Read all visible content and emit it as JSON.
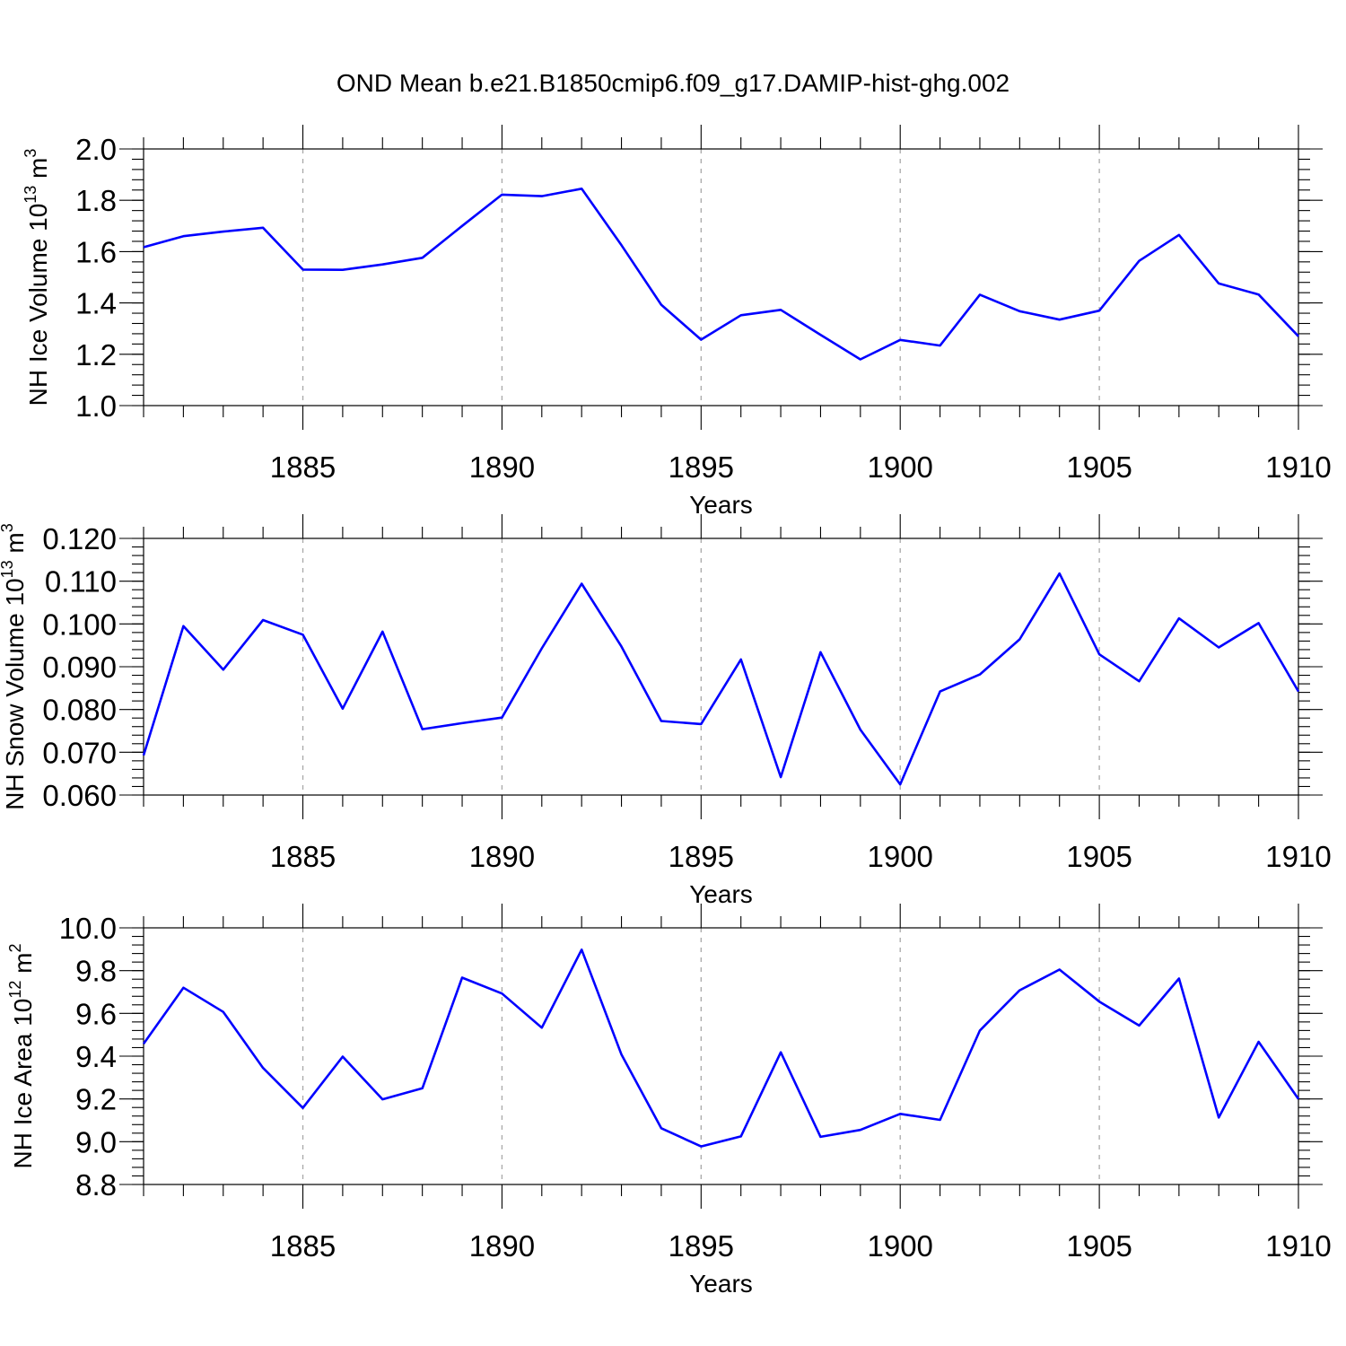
{
  "title": "OND Mean b.e21.B1850cmip6.f09_g17.DAMIP-hist-ghg.002",
  "colors": {
    "line": "#0000ff",
    "axis": "#000000",
    "grid": "#a8a8a8"
  },
  "chart_data": [
    {
      "type": "line",
      "ylabel": {
        "text": "NH Ice Volume 10",
        "sup1": "13",
        "mid": " m",
        "sup2": "3"
      },
      "xlabel": "Years",
      "xlim": [
        1881,
        1910
      ],
      "ylim": [
        1.0,
        2.0
      ],
      "yticks": [
        {
          "v": 1.0,
          "label": "1.0"
        },
        {
          "v": 1.2,
          "label": "1.2"
        },
        {
          "v": 1.4,
          "label": "1.4"
        },
        {
          "v": 1.6,
          "label": "1.6"
        },
        {
          "v": 1.8,
          "label": "1.8"
        },
        {
          "v": 2.0,
          "label": "2.0"
        }
      ],
      "yminor_step": 0.04,
      "xticks": [
        {
          "v": 1885,
          "label": "1885"
        },
        {
          "v": 1890,
          "label": "1890"
        },
        {
          "v": 1895,
          "label": "1895"
        },
        {
          "v": 1900,
          "label": "1900"
        },
        {
          "v": 1905,
          "label": "1905"
        },
        {
          "v": 1910,
          "label": "1910"
        }
      ],
      "grid": "vertical dashed at major x ticks",
      "x": [
        1881,
        1882,
        1883,
        1884,
        1885,
        1886,
        1887,
        1888,
        1889,
        1890,
        1891,
        1892,
        1893,
        1894,
        1895,
        1896,
        1897,
        1898,
        1899,
        1900,
        1901,
        1902,
        1903,
        1904,
        1905,
        1906,
        1907,
        1908,
        1909,
        1910
      ],
      "values": [
        1.617,
        1.66,
        1.678,
        1.693,
        1.53,
        1.529,
        1.55,
        1.576,
        1.7,
        1.822,
        1.816,
        1.845,
        1.625,
        1.393,
        1.257,
        1.352,
        1.373,
        1.276,
        1.18,
        1.256,
        1.234,
        1.432,
        1.368,
        1.335,
        1.37,
        1.564,
        1.665,
        1.476,
        1.433,
        1.27
      ]
    },
    {
      "type": "line",
      "ylabel": {
        "text": "NH Snow Volume 10",
        "sup1": "13",
        "mid": " m",
        "sup2": "3"
      },
      "xlabel": "Years",
      "xlim": [
        1881,
        1910
      ],
      "ylim": [
        0.06,
        0.12
      ],
      "yticks": [
        {
          "v": 0.06,
          "label": "0.060"
        },
        {
          "v": 0.07,
          "label": "0.070"
        },
        {
          "v": 0.08,
          "label": "0.080"
        },
        {
          "v": 0.09,
          "label": "0.090"
        },
        {
          "v": 0.1,
          "label": "0.100"
        },
        {
          "v": 0.11,
          "label": "0.110"
        },
        {
          "v": 0.12,
          "label": "0.120"
        }
      ],
      "yminor_step": 0.002,
      "xticks": [
        {
          "v": 1885,
          "label": "1885"
        },
        {
          "v": 1890,
          "label": "1890"
        },
        {
          "v": 1895,
          "label": "1895"
        },
        {
          "v": 1900,
          "label": "1900"
        },
        {
          "v": 1905,
          "label": "1905"
        },
        {
          "v": 1910,
          "label": "1910"
        }
      ],
      "grid": "vertical dashed at major x ticks",
      "x": [
        1881,
        1882,
        1883,
        1884,
        1885,
        1886,
        1887,
        1888,
        1889,
        1890,
        1891,
        1892,
        1893,
        1894,
        1895,
        1896,
        1897,
        1898,
        1899,
        1900,
        1901,
        1902,
        1903,
        1904,
        1905,
        1906,
        1907,
        1908,
        1909,
        1910
      ],
      "values": [
        0.0693,
        0.0995,
        0.0893,
        0.1009,
        0.0975,
        0.0802,
        0.0982,
        0.0754,
        0.0768,
        0.0781,
        0.0943,
        0.1094,
        0.0947,
        0.0773,
        0.0766,
        0.0917,
        0.0642,
        0.0934,
        0.0753,
        0.0625,
        0.0842,
        0.0882,
        0.0964,
        0.1118,
        0.0929,
        0.0866,
        0.1013,
        0.0945,
        0.1002,
        0.0842
      ]
    },
    {
      "type": "line",
      "ylabel": {
        "text": "NH Ice Area 10",
        "sup1": "12",
        "mid": " m",
        "sup2": "2"
      },
      "xlabel": "Years",
      "xlim": [
        1881,
        1910
      ],
      "ylim": [
        8.8,
        10.0
      ],
      "yticks": [
        {
          "v": 8.8,
          "label": "8.8"
        },
        {
          "v": 9.0,
          "label": "9.0"
        },
        {
          "v": 9.2,
          "label": "9.2"
        },
        {
          "v": 9.4,
          "label": "9.4"
        },
        {
          "v": 9.6,
          "label": "9.6"
        },
        {
          "v": 9.8,
          "label": "9.8"
        },
        {
          "v": 10.0,
          "label": "10.0"
        }
      ],
      "yminor_step": 0.04,
      "xticks": [
        {
          "v": 1885,
          "label": "1885"
        },
        {
          "v": 1890,
          "label": "1890"
        },
        {
          "v": 1895,
          "label": "1895"
        },
        {
          "v": 1900,
          "label": "1900"
        },
        {
          "v": 1905,
          "label": "1905"
        },
        {
          "v": 1910,
          "label": "1910"
        }
      ],
      "grid": "vertical dashed at major x ticks",
      "x": [
        1881,
        1882,
        1883,
        1884,
        1885,
        1886,
        1887,
        1888,
        1889,
        1890,
        1891,
        1892,
        1893,
        1894,
        1895,
        1896,
        1897,
        1898,
        1899,
        1900,
        1901,
        1902,
        1903,
        1904,
        1905,
        1906,
        1907,
        1908,
        1909,
        1910
      ],
      "values": [
        9.458,
        9.72,
        9.607,
        9.345,
        9.158,
        9.398,
        9.198,
        9.25,
        9.767,
        9.693,
        9.533,
        9.898,
        9.407,
        9.063,
        8.978,
        9.025,
        9.418,
        9.023,
        9.055,
        9.13,
        9.102,
        9.52,
        9.708,
        9.805,
        9.655,
        9.543,
        9.763,
        9.113,
        9.467,
        9.2
      ]
    }
  ]
}
